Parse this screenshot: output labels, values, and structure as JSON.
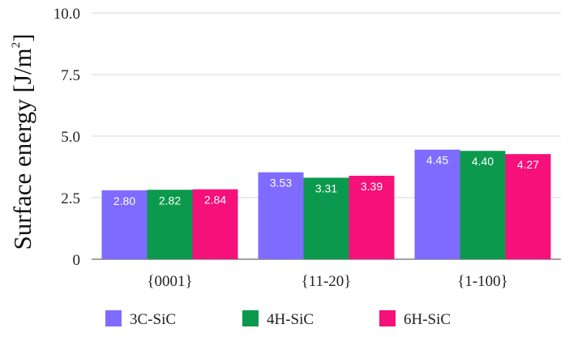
{
  "chart_data": {
    "type": "bar",
    "categories": [
      "{0001}",
      "{11-20}",
      "{1-100}"
    ],
    "series": [
      {
        "name": "3C-SiC",
        "values": [
          2.8,
          3.53,
          4.45
        ],
        "color": "#7f6bff"
      },
      {
        "name": "4H-SiC",
        "values": [
          2.82,
          3.31,
          4.4
        ],
        "color": "#0b9a4d"
      },
      {
        "name": "6H-SiC",
        "values": [
          2.84,
          3.39,
          4.27
        ],
        "color": "#f5107a"
      }
    ],
    "value_labels": [
      [
        "2.80",
        "3.53",
        "4.45"
      ],
      [
        "2.82",
        "3.31",
        "4.40"
      ],
      [
        "2.84",
        "3.39",
        "4.27"
      ]
    ],
    "ylabel_main": "Surface energy [J/m",
    "ylabel_exponent": "2",
    "ylabel_close": "]",
    "xlabel": "",
    "ylim": [
      0,
      10
    ],
    "yticks": [
      0,
      2.5,
      5.0,
      7.5,
      10.0
    ],
    "ytick_labels": [
      "0",
      "2.5",
      "5.0",
      "7.5",
      "10.0"
    ],
    "grid": true,
    "legend_position": "bottom"
  }
}
